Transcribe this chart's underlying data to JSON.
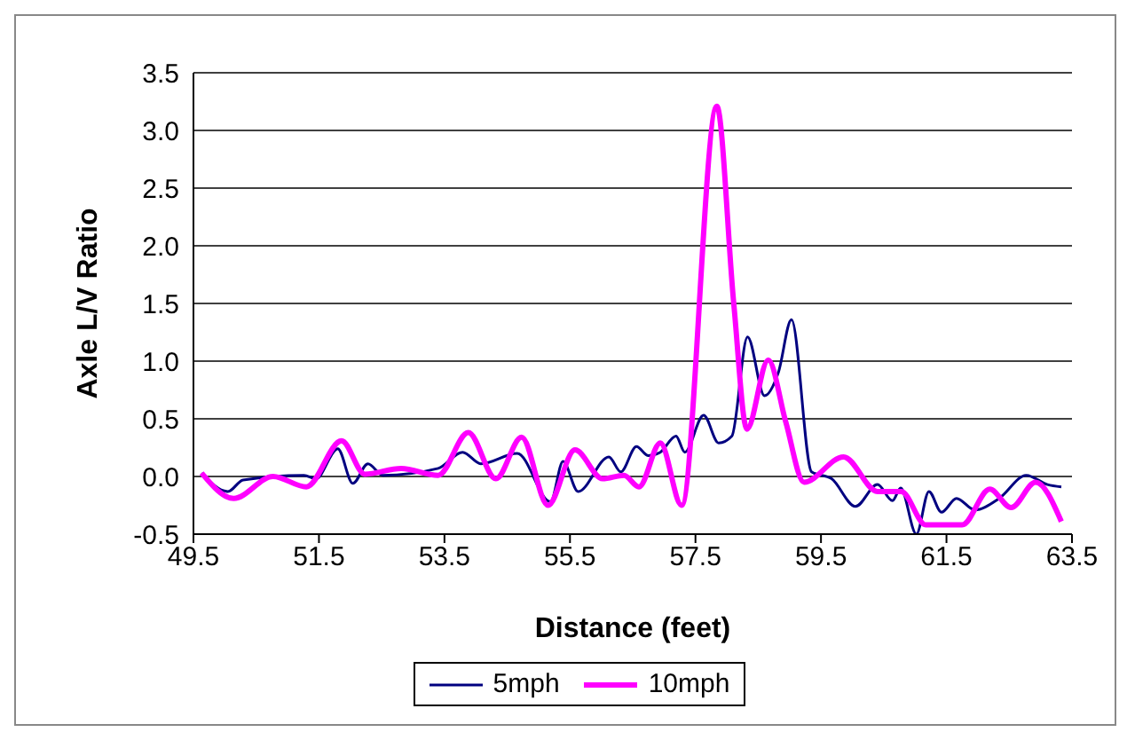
{
  "chart_data": {
    "type": "line",
    "xlabel": "Distance (feet)",
    "ylabel": "Axle L/V Ratio",
    "xlim": [
      49.5,
      63.5
    ],
    "xticks": [
      49.5,
      51.5,
      53.5,
      55.5,
      57.5,
      59.5,
      61.5,
      63.5
    ],
    "ylim": [
      -0.5,
      3.5
    ],
    "yticks": [
      {
        "value": -0.5,
        "label": "-0.5"
      },
      {
        "value": 0,
        "label": "0.0"
      },
      {
        "value": 0.5,
        "label": "0.5"
      },
      {
        "value": 1,
        "label": "1.0"
      },
      {
        "value": 1.5,
        "label": "1.5"
      },
      {
        "value": 2,
        "label": "2.0"
      },
      {
        "value": 2.5,
        "label": "2.5"
      },
      {
        "value": 3,
        "label": "3.0"
      },
      {
        "value": 3.5,
        "label": "3.5"
      }
    ],
    "grid": "y",
    "legend": "bottom",
    "marker": "none",
    "line_style": "solid",
    "series": [
      {
        "name": "5mph",
        "color": "#000080",
        "x": [
          49.63,
          50.05,
          50.29,
          51.26,
          51.45,
          51.8,
          52.04,
          52.28,
          52.52,
          53.4,
          53.79,
          54.08,
          54.66,
          55.19,
          55.39,
          55.63,
          56.12,
          56.31,
          56.56,
          56.75,
          56.94,
          57.19,
          57.33,
          57.63,
          57.87,
          58.08,
          58.33,
          58.6,
          58.82,
          59.03,
          59.35,
          59.67,
          60.05,
          60.4,
          60.64,
          60.77,
          61.02,
          61.22,
          61.42,
          61.66,
          61.95,
          62.34,
          62.77,
          63.11,
          63.33
        ],
        "values": [
          0.03,
          -0.13,
          -0.03,
          0.01,
          -0.02,
          0.24,
          -0.06,
          0.11,
          0.01,
          0.07,
          0.21,
          0.11,
          0.2,
          -0.22,
          0.13,
          -0.13,
          0.17,
          0.04,
          0.26,
          0.18,
          0.21,
          0.35,
          0.21,
          0.53,
          0.29,
          0.35,
          1.21,
          0.7,
          0.9,
          1.36,
          0.04,
          -0.02,
          -0.26,
          -0.07,
          -0.21,
          -0.1,
          -0.5,
          -0.13,
          -0.31,
          -0.19,
          -0.29,
          -0.19,
          0.01,
          -0.07,
          -0.09
        ]
      },
      {
        "name": "10mph",
        "color": "#ff00ff",
        "x": [
          49.63,
          50.14,
          50.77,
          51.3,
          51.86,
          52.23,
          52.81,
          53.4,
          53.88,
          54.32,
          54.73,
          55.15,
          55.58,
          56.02,
          56.36,
          56.6,
          56.94,
          57.28,
          57.84,
          58.11,
          58.32,
          58.66,
          58.94,
          59.23,
          59.86,
          60.4,
          60.78,
          61.17,
          61.75,
          62.19,
          62.53,
          62.92,
          63.33
        ],
        "values": [
          0.03,
          -0.19,
          0,
          -0.09,
          0.31,
          0.02,
          0.07,
          0.01,
          0.38,
          -0.02,
          0.34,
          -0.25,
          0.23,
          -0.02,
          0.01,
          -0.09,
          0.29,
          -0.25,
          3.21,
          1.5,
          0.41,
          1.01,
          0.47,
          -0.05,
          0.17,
          -0.13,
          -0.13,
          -0.42,
          -0.42,
          -0.11,
          -0.27,
          -0.05,
          -0.39
        ]
      }
    ]
  }
}
